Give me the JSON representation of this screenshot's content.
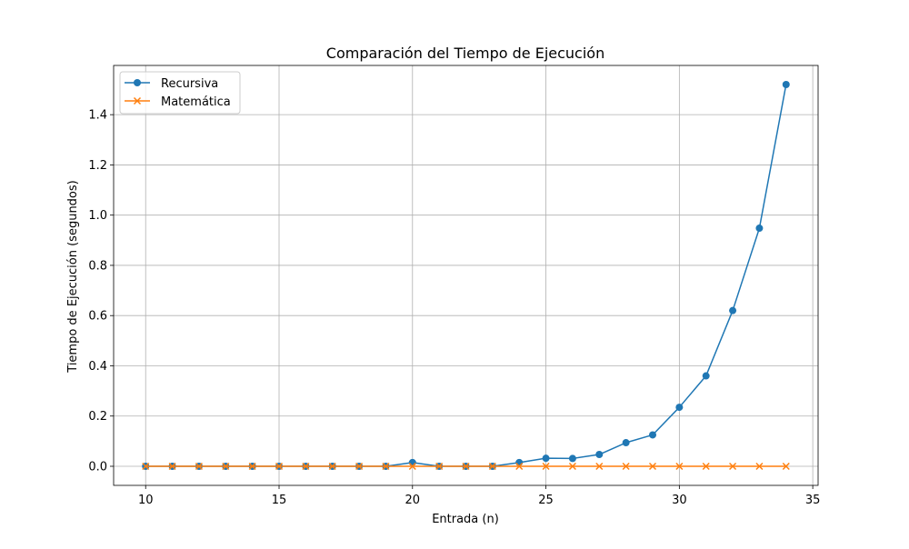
{
  "chart_data": {
    "type": "line",
    "title": "Comparación del Tiempo de Ejecución",
    "xlabel": "Entrada (n)",
    "ylabel": "Tiempo de Ejecución (segundos)",
    "xlim": [
      8.8,
      35.2
    ],
    "ylim": [
      -0.076,
      1.596
    ],
    "xticks": [
      10,
      15,
      20,
      25,
      30,
      35
    ],
    "yticks": [
      0.0,
      0.2,
      0.4,
      0.6,
      0.8,
      1.0,
      1.2,
      1.4
    ],
    "grid": true,
    "legend_position": "top-left",
    "x": [
      10,
      11,
      12,
      13,
      14,
      15,
      16,
      17,
      18,
      19,
      20,
      21,
      22,
      23,
      24,
      25,
      26,
      27,
      28,
      29,
      30,
      31,
      32,
      33,
      34
    ],
    "series": [
      {
        "name": "Recursiva",
        "color": "#1f77b4",
        "marker": "circle",
        "values": [
          0.0,
          0.0,
          0.0,
          0.0,
          0.0,
          0.0,
          0.0,
          0.0,
          0.0,
          0.0,
          0.015,
          0.0,
          0.0,
          0.0,
          0.015,
          0.032,
          0.031,
          0.047,
          0.094,
          0.125,
          0.235,
          0.36,
          0.62,
          0.948,
          1.52
        ]
      },
      {
        "name": "Matemática",
        "color": "#ff7f0e",
        "marker": "x",
        "values": [
          0.0,
          0.0,
          0.0,
          0.0,
          0.0,
          0.0,
          0.0,
          0.0,
          0.0,
          0.0,
          0.0,
          0.0,
          0.0,
          0.0,
          0.0,
          0.0,
          0.0,
          0.0,
          0.0,
          0.0,
          0.0,
          0.0,
          0.0,
          0.0,
          0.0
        ]
      }
    ]
  }
}
